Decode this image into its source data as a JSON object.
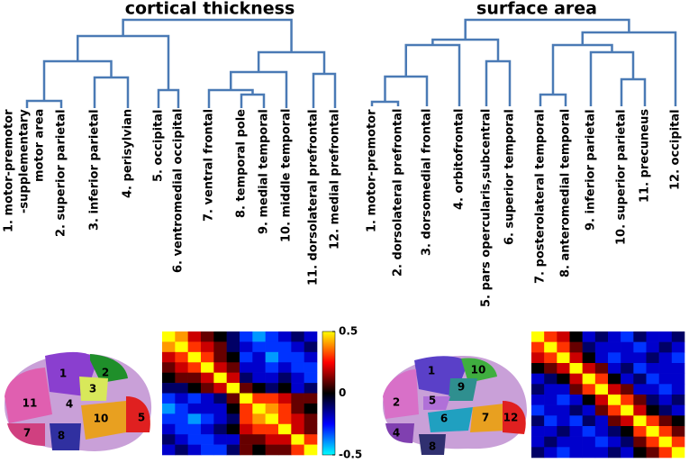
{
  "chart_data": [
    {
      "type": "heatmap",
      "title": "cortical thickness",
      "categories": [
        "1. motor-premotor\n-supplementary\nmotor area",
        "2. superior parietal",
        "3. inferior parietal",
        "4. perisylvian",
        "5. occipital",
        "6. ventromedial occipital",
        "7. ventral frontal",
        "8. temporal pole",
        "9. medial temporal",
        "10. middle temporal",
        "11. dorsolateral prefrontal",
        "12. medial prefrontal"
      ],
      "brain_labels": [
        "1",
        "2",
        "3",
        "4",
        "11",
        "10",
        "5",
        "7",
        "8"
      ],
      "values": [
        [
          0.5,
          0.4,
          0.2,
          0.1,
          0,
          -0.1,
          -0.3,
          -0.4,
          -0.3,
          -0.2,
          -0.1,
          -0.2
        ],
        [
          0.4,
          0.5,
          0.3,
          0.2,
          0.1,
          -0.1,
          -0.2,
          -0.3,
          -0.3,
          -0.3,
          -0.2,
          -0.1
        ],
        [
          0.2,
          0.3,
          0.5,
          0.3,
          0.1,
          0,
          -0.3,
          -0.2,
          -0.4,
          -0.3,
          -0.3,
          -0.2
        ],
        [
          0.1,
          0.2,
          0.3,
          0.5,
          0.2,
          0.1,
          -0.2,
          -0.2,
          -0.3,
          -0.2,
          -0.3,
          -0.3
        ],
        [
          0,
          0.1,
          0.1,
          0.2,
          0.5,
          0.2,
          -0.1,
          -0.2,
          -0.2,
          -0.1,
          -0.2,
          -0.3
        ],
        [
          -0.1,
          -0.1,
          0,
          0.1,
          0.2,
          0.5,
          0.1,
          0,
          -0.1,
          0,
          -0.2,
          -0.1
        ],
        [
          -0.3,
          -0.2,
          -0.3,
          -0.2,
          -0.1,
          0.1,
          0.5,
          0.3,
          0.3,
          0.2,
          0.1,
          0.1
        ],
        [
          -0.4,
          -0.3,
          -0.2,
          -0.2,
          -0.2,
          0,
          0.3,
          0.5,
          0.4,
          0.3,
          0.1,
          0
        ],
        [
          -0.3,
          -0.3,
          -0.4,
          -0.3,
          -0.2,
          -0.1,
          0.3,
          0.4,
          0.5,
          0.3,
          0.2,
          0.1
        ],
        [
          -0.2,
          -0.3,
          -0.3,
          -0.2,
          -0.1,
          0,
          0.2,
          0.3,
          0.3,
          0.5,
          0.2,
          0.1
        ],
        [
          -0.1,
          -0.2,
          -0.3,
          -0.3,
          -0.2,
          -0.2,
          0.1,
          0.1,
          0.2,
          0.2,
          0.5,
          0.3
        ],
        [
          -0.2,
          -0.1,
          -0.2,
          -0.3,
          -0.3,
          -0.1,
          0.1,
          0,
          0.1,
          0.1,
          0.3,
          0.5
        ]
      ],
      "zlim": [
        -0.5,
        0.5
      ],
      "zticks": [
        0.5,
        0,
        -0.5
      ]
    },
    {
      "type": "heatmap",
      "title": "surface area",
      "categories": [
        "1. motor-premotor",
        "2. dorsolateral prefrontal",
        "3. dorsomedial frontal",
        "4. orbitofrontal",
        "5. pars opercularis,subcentral",
        "6. superior temporal",
        "7. posterolateral temporal",
        "8. anteromedial temporal",
        "9. inferior parietal",
        "10. superior parietal",
        "11. precuneus",
        "12. occipital"
      ],
      "brain_labels": [
        "1",
        "10",
        "9",
        "2",
        "5",
        "6",
        "7",
        "12",
        "4",
        "8"
      ],
      "values": [
        [
          0.5,
          0.3,
          0.2,
          0,
          -0.2,
          -0.1,
          -0.2,
          -0.3,
          -0.1,
          -0.2,
          -0.2,
          -0.1
        ],
        [
          0.3,
          0.5,
          0.3,
          0.1,
          -0.1,
          -0.2,
          -0.2,
          -0.2,
          -0.3,
          -0.2,
          -0.1,
          -0.2
        ],
        [
          0.2,
          0.3,
          0.5,
          0.2,
          0,
          -0.2,
          -0.3,
          -0.2,
          -0.2,
          -0.1,
          -0.2,
          -0.3
        ],
        [
          0,
          0.1,
          0.2,
          0.5,
          0.2,
          0.1,
          -0.2,
          -0.1,
          -0.3,
          -0.2,
          -0.2,
          -0.2
        ],
        [
          -0.2,
          -0.1,
          0,
          0.2,
          0.5,
          0.3,
          0,
          -0.2,
          -0.1,
          -0.3,
          -0.2,
          -0.2
        ],
        [
          -0.1,
          -0.2,
          -0.2,
          0.1,
          0.3,
          0.5,
          0.2,
          0.1,
          -0.2,
          -0.2,
          -0.3,
          -0.2
        ],
        [
          -0.2,
          -0.2,
          -0.3,
          -0.2,
          0,
          0.2,
          0.5,
          0.3,
          0.1,
          -0.1,
          -0.2,
          -0.1
        ],
        [
          -0.3,
          -0.2,
          -0.2,
          -0.1,
          -0.2,
          0.1,
          0.3,
          0.5,
          0.2,
          0,
          -0.1,
          -0.2
        ],
        [
          -0.1,
          -0.3,
          -0.2,
          -0.3,
          -0.1,
          -0.2,
          0.1,
          0.2,
          0.5,
          0.3,
          0.1,
          0
        ],
        [
          -0.2,
          -0.2,
          -0.1,
          -0.2,
          -0.3,
          -0.2,
          -0.1,
          0,
          0.3,
          0.5,
          0.3,
          0.1
        ],
        [
          -0.2,
          -0.1,
          -0.2,
          -0.2,
          -0.2,
          -0.3,
          -0.2,
          -0.1,
          0.1,
          0.3,
          0.5,
          0.3
        ],
        [
          -0.1,
          -0.2,
          -0.3,
          -0.2,
          -0.2,
          -0.2,
          -0.1,
          -0.2,
          0,
          0.1,
          0.3,
          0.5
        ]
      ],
      "zlim": [
        -0.5,
        0.5
      ]
    }
  ]
}
